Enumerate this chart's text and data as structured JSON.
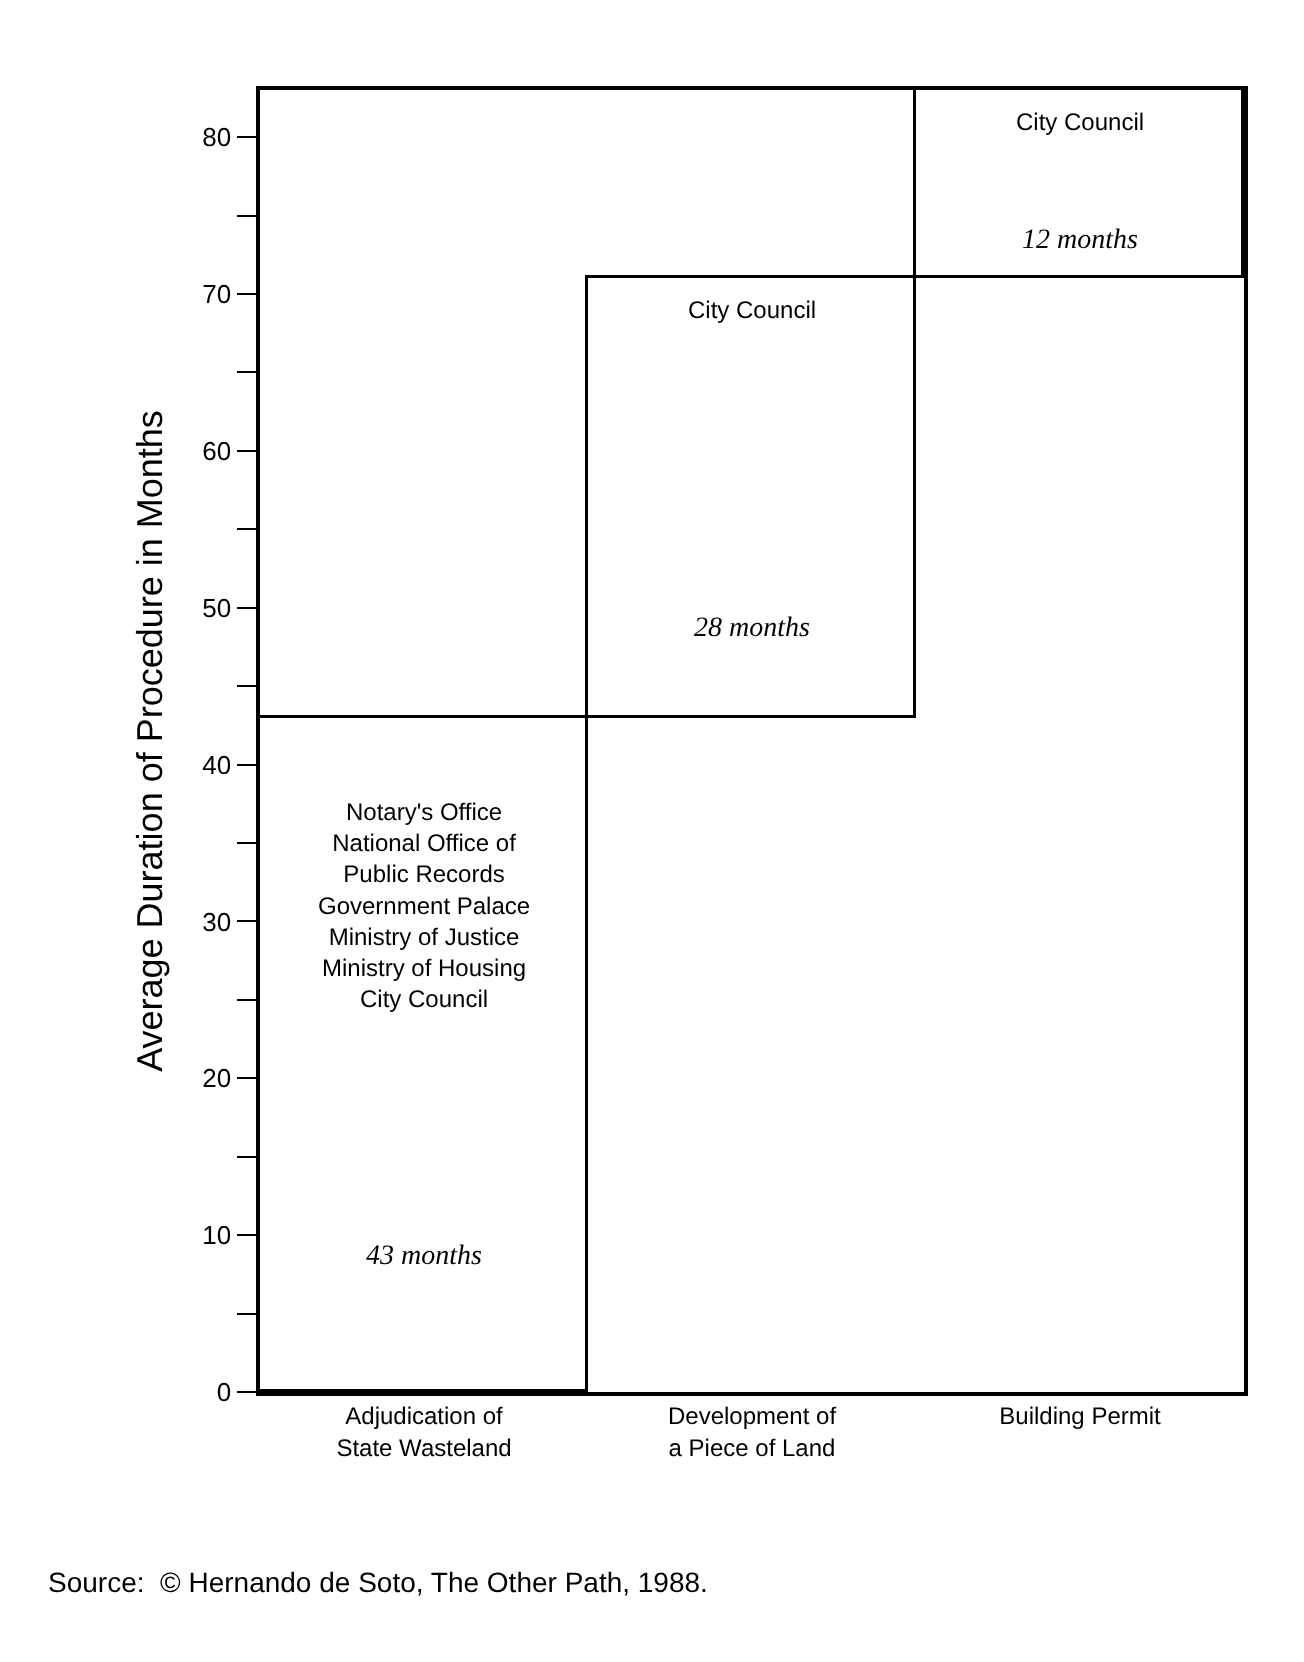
{
  "chart_data": {
    "type": "bar",
    "ylabel": "Average Duration of Procedure in Months",
    "categories": [
      "Adjudication of\nState Wasteland",
      "Development of\na Piece of Land",
      "Building Permit"
    ],
    "values": [
      43,
      28,
      12
    ],
    "base": [
      0,
      43,
      71
    ],
    "value_labels": [
      "43 months",
      "28 months",
      "12 months"
    ],
    "colors": [
      "#ffffff",
      "#ffffff",
      "#ffffff"
    ],
    "ylim": [
      0,
      83
    ],
    "yticks": [
      0,
      {
        "value": 5,
        "label": null
      },
      10,
      {
        "value": 15,
        "label": null
      },
      20,
      {
        "value": 25,
        "label": null
      },
      30,
      {
        "value": 35,
        "label": null
      },
      40,
      {
        "value": 45,
        "label": null
      },
      50,
      {
        "value": 55,
        "label": null
      },
      60,
      {
        "value": 65,
        "label": null
      },
      70,
      {
        "value": 75,
        "label": null
      },
      80
    ],
    "grid": false,
    "legend": false,
    "annotations": [
      "Notary's Office\nNational Office of\nPublic Records\nGovernment Palace\nMinistry of Justice\nMinistry of Housing\nCity Council",
      "City Council",
      "City Council",
      "Source:  © Hernando de Soto, The Other Path, 1988."
    ]
  }
}
